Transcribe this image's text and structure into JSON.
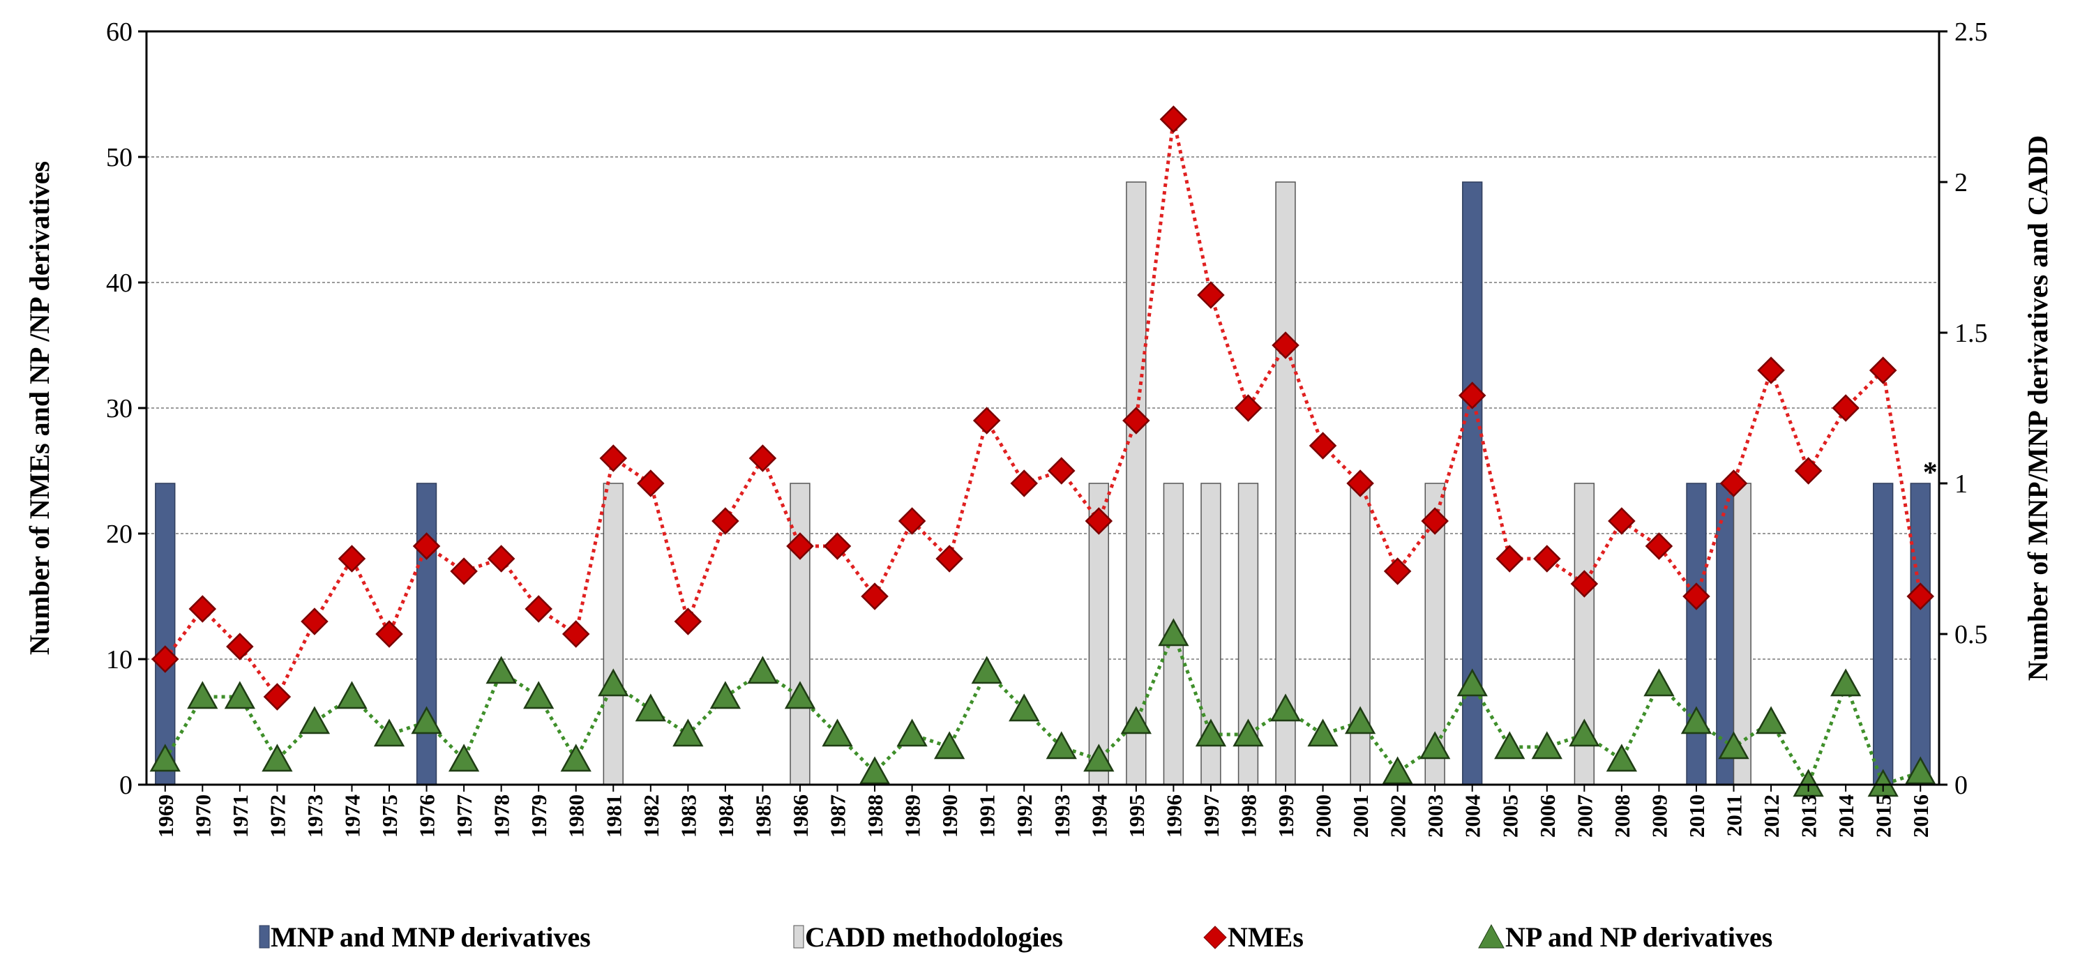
{
  "chart_data": {
    "type": "bar+line",
    "years": [
      "1969",
      "1970",
      "1971",
      "1972",
      "1973",
      "1974",
      "1975",
      "1976",
      "1977",
      "1978",
      "1979",
      "1980",
      "1981",
      "1982",
      "1983",
      "1984",
      "1985",
      "1986",
      "1987",
      "1988",
      "1989",
      "1990",
      "1991",
      "1992",
      "1993",
      "1994",
      "1995",
      "1996",
      "1997",
      "1998",
      "1999",
      "2000",
      "2001",
      "2002",
      "2003",
      "2004",
      "2005",
      "2006",
      "2007",
      "2008",
      "2009",
      "2010",
      "2011",
      "2012",
      "2013",
      "2014",
      "2015",
      "2016"
    ],
    "left_axis": {
      "title": "Number of NMEs and NP /NP derivatives",
      "ylim": [
        0,
        60
      ],
      "ticks": [
        "0",
        "10",
        "20",
        "30",
        "40",
        "50",
        "60"
      ]
    },
    "right_axis": {
      "title": "Number of MNP/MNP derivatives and CADD",
      "ylim": [
        0,
        2.5
      ],
      "ticks": [
        "0",
        "0.5",
        "1",
        "1.5",
        "2",
        "2.5"
      ]
    },
    "series": [
      {
        "name": "MNP and MNP derivatives",
        "kind": "bar",
        "axis": "right",
        "color": "#4a5f8c",
        "values": [
          1,
          0,
          0,
          0,
          0,
          0,
          0,
          1,
          0,
          0,
          0,
          0,
          0,
          0,
          0,
          0,
          0,
          0,
          0,
          0,
          0,
          0,
          0,
          0,
          0,
          0,
          0,
          0,
          0,
          0,
          0,
          0,
          0,
          0,
          0,
          2,
          0,
          0,
          0,
          0,
          0,
          1,
          1,
          0,
          0,
          0,
          1,
          1
        ]
      },
      {
        "name": "CADD methodologies",
        "kind": "bar",
        "axis": "right",
        "color": "#d9d9d9",
        "values": [
          0,
          0,
          0,
          0,
          0,
          0,
          0,
          0,
          0,
          0,
          0,
          0,
          1,
          0,
          0,
          0,
          0,
          1,
          0,
          0,
          0,
          0,
          0,
          0,
          0,
          1,
          2,
          1,
          1,
          1,
          2,
          0,
          1,
          0,
          1,
          0,
          0,
          0,
          1,
          0,
          0,
          0,
          1,
          0,
          0,
          0,
          0,
          0
        ]
      },
      {
        "name": "NMEs",
        "kind": "line",
        "axis": "left",
        "color": "#cc0000",
        "values": [
          10,
          14,
          11,
          7,
          13,
          18,
          12,
          19,
          17,
          18,
          14,
          12,
          26,
          24,
          13,
          21,
          26,
          19,
          19,
          15,
          21,
          18,
          29,
          24,
          25,
          21,
          29,
          53,
          39,
          30,
          35,
          27,
          24,
          17,
          21,
          31,
          18,
          18,
          16,
          21,
          19,
          15,
          24,
          33,
          25,
          30,
          33,
          15
        ]
      },
      {
        "name": "NP and NP derivatives",
        "kind": "line",
        "axis": "left",
        "color": "#4f8a3a",
        "values": [
          2,
          7,
          7,
          2,
          5,
          7,
          4,
          5,
          2,
          9,
          7,
          2,
          8,
          6,
          4,
          7,
          9,
          7,
          4,
          1,
          4,
          3,
          9,
          6,
          3,
          2,
          5,
          12,
          4,
          4,
          6,
          4,
          5,
          1,
          3,
          8,
          3,
          3,
          4,
          2,
          8,
          5,
          3,
          5,
          0,
          8,
          0,
          1
        ]
      }
    ],
    "legend": [
      "MNP and MNP derivatives",
      "CADD methodologies",
      "NMEs",
      "NP and NP derivatives"
    ],
    "annotations": [
      {
        "text": "*",
        "year": "2016"
      }
    ],
    "grid": true
  }
}
